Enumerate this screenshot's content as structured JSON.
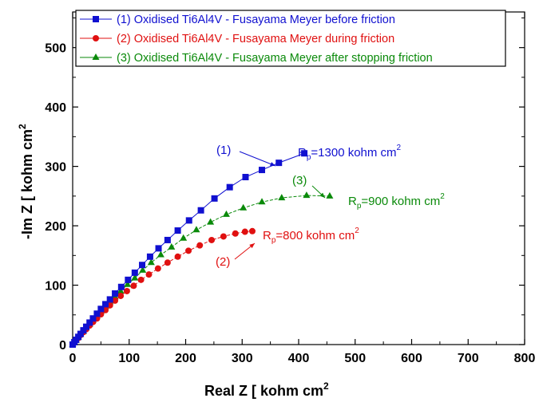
{
  "chart_data": {
    "type": "scatter",
    "xlabel": "Real Z [ kohm cm",
    "xlabel_sup": "2",
    "ylabel": "-Im Z [ kohm cm",
    "ylabel_sup": "2",
    "xlim": [
      0,
      800
    ],
    "ylim": [
      0,
      560
    ],
    "xticks": [
      0,
      100,
      200,
      300,
      400,
      500,
      600,
      700,
      800
    ],
    "yticks": [
      0,
      100,
      200,
      300,
      400,
      500
    ],
    "legend_position": "top",
    "series": [
      {
        "name": "(1) Oxidised Ti6Al4V - Fusayama Meyer before friction",
        "color": "#1010d0",
        "marker": "square",
        "x": [
          0,
          3,
          6,
          10,
          14,
          19,
          24,
          30,
          36,
          43,
          50,
          58,
          66,
          75,
          86,
          98,
          110,
          123,
          137,
          152,
          168,
          186,
          206,
          227,
          251,
          278,
          306,
          335,
          365,
          410
        ],
        "y": [
          0,
          4,
          8,
          13,
          18,
          24,
          30,
          37,
          44,
          52,
          60,
          68,
          76,
          86,
          97,
          109,
          121,
          134,
          148,
          162,
          176,
          192,
          209,
          226,
          246,
          265,
          282,
          294,
          306,
          322
        ]
      },
      {
        "name": "(2) Oxidised Ti6Al4V - Fusayama Meyer during friction",
        "color": "#e01010",
        "marker": "circle",
        "x": [
          0,
          3,
          6,
          10,
          14,
          19,
          24,
          30,
          36,
          43,
          50,
          58,
          66,
          75,
          85,
          96,
          108,
          121,
          135,
          151,
          168,
          186,
          205,
          225,
          246,
          267,
          288,
          305,
          318
        ],
        "y": [
          0,
          3,
          7,
          11,
          16,
          21,
          26,
          32,
          38,
          44,
          51,
          58,
          66,
          74,
          82,
          90,
          99,
          109,
          118,
          128,
          138,
          148,
          158,
          167,
          176,
          182,
          187,
          190,
          191
        ]
      },
      {
        "name": "(3) Oxidised Ti6Al4V - Fusayama Meyer after stopping friction",
        "color": "#0a8a0a",
        "marker": "triangle",
        "x": [
          0,
          3,
          6,
          10,
          14,
          19,
          24,
          30,
          36,
          43,
          50,
          58,
          66,
          75,
          85,
          97,
          110,
          124,
          139,
          156,
          175,
          196,
          219,
          244,
          272,
          302,
          335,
          370,
          414,
          455
        ],
        "y": [
          0,
          4,
          7,
          12,
          17,
          22,
          28,
          34,
          41,
          48,
          56,
          64,
          72,
          80,
          90,
          101,
          112,
          125,
          138,
          151,
          164,
          179,
          193,
          206,
          219,
          230,
          240,
          247,
          251,
          250
        ]
      }
    ],
    "annotations": [
      {
        "id": "a1",
        "label": "(1)",
        "color": "#1010d0"
      },
      {
        "id": "a2",
        "label": "(2)",
        "color": "#e01010"
      },
      {
        "id": "a3",
        "label": "(3)",
        "color": "#0a8a0a"
      },
      {
        "id": "rp1",
        "prefix": "R",
        "sub": "p",
        "text": "=1300 kohm cm",
        "sup": "2",
        "color": "#1010d0"
      },
      {
        "id": "rp2",
        "prefix": "R",
        "sub": "p",
        "text": "=800 kohm cm",
        "sup": "2",
        "color": "#e01010"
      },
      {
        "id": "rp3",
        "prefix": "R",
        "sub": "p",
        "text": "=900 kohm cm",
        "sup": "2",
        "color": "#0a8a0a"
      }
    ]
  }
}
